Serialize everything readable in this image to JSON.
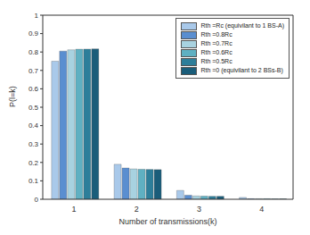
{
  "chart_data": {
    "type": "bar",
    "x_label": "Number of transmissions(k)",
    "y_label": "P(l=k)",
    "categories": [
      "1",
      "2",
      "3",
      "4"
    ],
    "series": [
      {
        "name": "Rth =Rc (equivilant to 1 BS-A)",
        "color": "#a9c9ea",
        "values": [
          0.75,
          0.19,
          0.048,
          0.01
        ]
      },
      {
        "name": "Rth =0.8Rc",
        "color": "#5a8ed0",
        "values": [
          0.805,
          0.17,
          0.022,
          0.003
        ]
      },
      {
        "name": "Rth =0.7Rc",
        "color": "#a8d2e0",
        "values": [
          0.812,
          0.165,
          0.018,
          0.003
        ]
      },
      {
        "name": "Rth =0.6Rc",
        "color": "#5fb0c2",
        "values": [
          0.815,
          0.163,
          0.017,
          0.003
        ]
      },
      {
        "name": "Rth =0.5Rc",
        "color": "#2d7e9a",
        "values": [
          0.816,
          0.162,
          0.016,
          0.002
        ]
      },
      {
        "name": "Rth =0 (equivilant to 2 BSs-B)",
        "color": "#1a5d7a",
        "values": [
          0.817,
          0.161,
          0.016,
          0.002
        ]
      }
    ],
    "ylim": [
      0,
      1
    ],
    "yticks": [
      0,
      0.1,
      0.2,
      0.3,
      0.4,
      0.5,
      0.6,
      0.7,
      0.8,
      0.9,
      1
    ],
    "grid": false,
    "legend": "upper right"
  }
}
